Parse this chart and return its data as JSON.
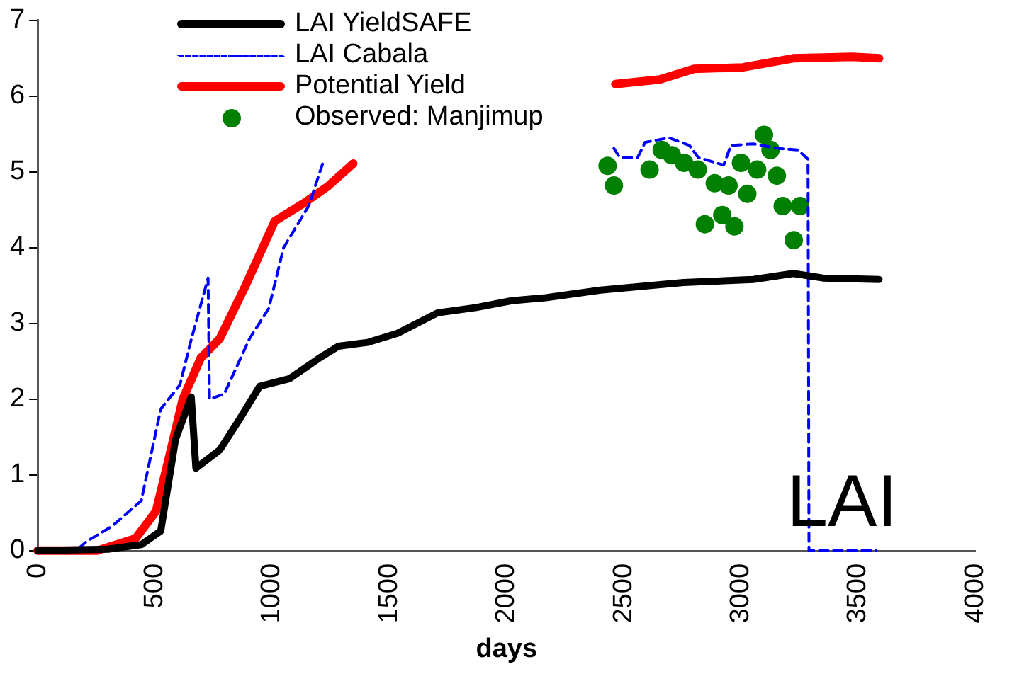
{
  "chart_data": {
    "type": "line",
    "xlabel": "days",
    "annotations": [
      "LAI"
    ],
    "xlim": [
      0,
      4000
    ],
    "xticks": [
      0,
      500,
      1000,
      1500,
      2000,
      2500,
      3000,
      3500,
      4000
    ],
    "ylim": [
      0,
      7
    ],
    "yticks": [
      0,
      1,
      2,
      3,
      4,
      5,
      6,
      7
    ],
    "grid": false,
    "legend": "top",
    "marker": "none",
    "series": [
      {
        "name": "LAI YieldSAFE",
        "color": "#000000",
        "line_style": "solid",
        "x": [
          0,
          300,
          442,
          525,
          588,
          655,
          675,
          777,
          860,
          947,
          1074,
          1200,
          1283,
          1409,
          1535,
          1706,
          1870,
          2022,
          2167,
          2401,
          2755,
          3052,
          3223,
          3349,
          3589
        ],
        "values": [
          0,
          0.02,
          0.08,
          0.26,
          1.47,
          2.03,
          1.09,
          1.33,
          1.73,
          2.17,
          2.27,
          2.54,
          2.7,
          2.75,
          2.87,
          3.14,
          3.21,
          3.3,
          3.34,
          3.44,
          3.54,
          3.58,
          3.66,
          3.6,
          3.58
        ]
      },
      {
        "name": "LAI Cabala",
        "color": "#0000ff",
        "line_style": "dashed",
        "x": [
          0,
          164,
          208,
          316,
          442,
          525,
          607,
          651,
          727,
          733,
          796,
          904,
          986,
          1049,
          1156,
          1220,
          1700,
          2458,
          2483,
          2559,
          2591,
          2692,
          2780,
          2818,
          2926,
          2957,
          3052,
          3160,
          3242,
          3286,
          3290,
          3577
        ],
        "values": [
          0,
          0,
          0.12,
          0.32,
          0.66,
          1.87,
          2.19,
          2.74,
          3.6,
          2.0,
          2.07,
          2.8,
          3.2,
          4.0,
          4.55,
          5.15,
          null,
          5.31,
          5.19,
          5.19,
          5.39,
          5.45,
          5.35,
          5.19,
          5.09,
          5.35,
          5.37,
          5.31,
          5.29,
          5.17,
          0,
          0
        ]
      },
      {
        "name": "Potential Yield",
        "color": "#ff0000",
        "line_style": "solid",
        "x": [
          0,
          253,
          417,
          505,
          568,
          619,
          695,
          777,
          884,
          1011,
          1137,
          1238,
          1346,
          1900,
          2464,
          2654,
          2800,
          3008,
          3223,
          3475,
          3589
        ],
        "values": [
          0,
          0,
          0.16,
          0.52,
          1.33,
          2.0,
          2.54,
          2.8,
          3.48,
          4.35,
          4.59,
          4.81,
          5.11,
          null,
          6.16,
          6.22,
          6.36,
          6.38,
          6.5,
          6.52,
          6.5
        ]
      },
      {
        "name": "Observed: Manjimup",
        "type": "scatter",
        "color": "#008000",
        "marker": "circle",
        "x": [
          2431,
          2458,
          2610,
          2662,
          2705,
          2757,
          2816,
          2888,
          2947,
          3000,
          3027,
          3069,
          2846,
          2920,
          2972,
          3098,
          3126,
          3153,
          3178,
          3252,
          3225
        ],
        "values": [
          5.08,
          4.82,
          5.03,
          5.29,
          5.22,
          5.12,
          5.03,
          4.85,
          4.82,
          5.12,
          4.71,
          5.03,
          4.31,
          4.43,
          4.28,
          5.49,
          5.29,
          4.95,
          4.55,
          4.55,
          4.1
        ]
      }
    ]
  }
}
